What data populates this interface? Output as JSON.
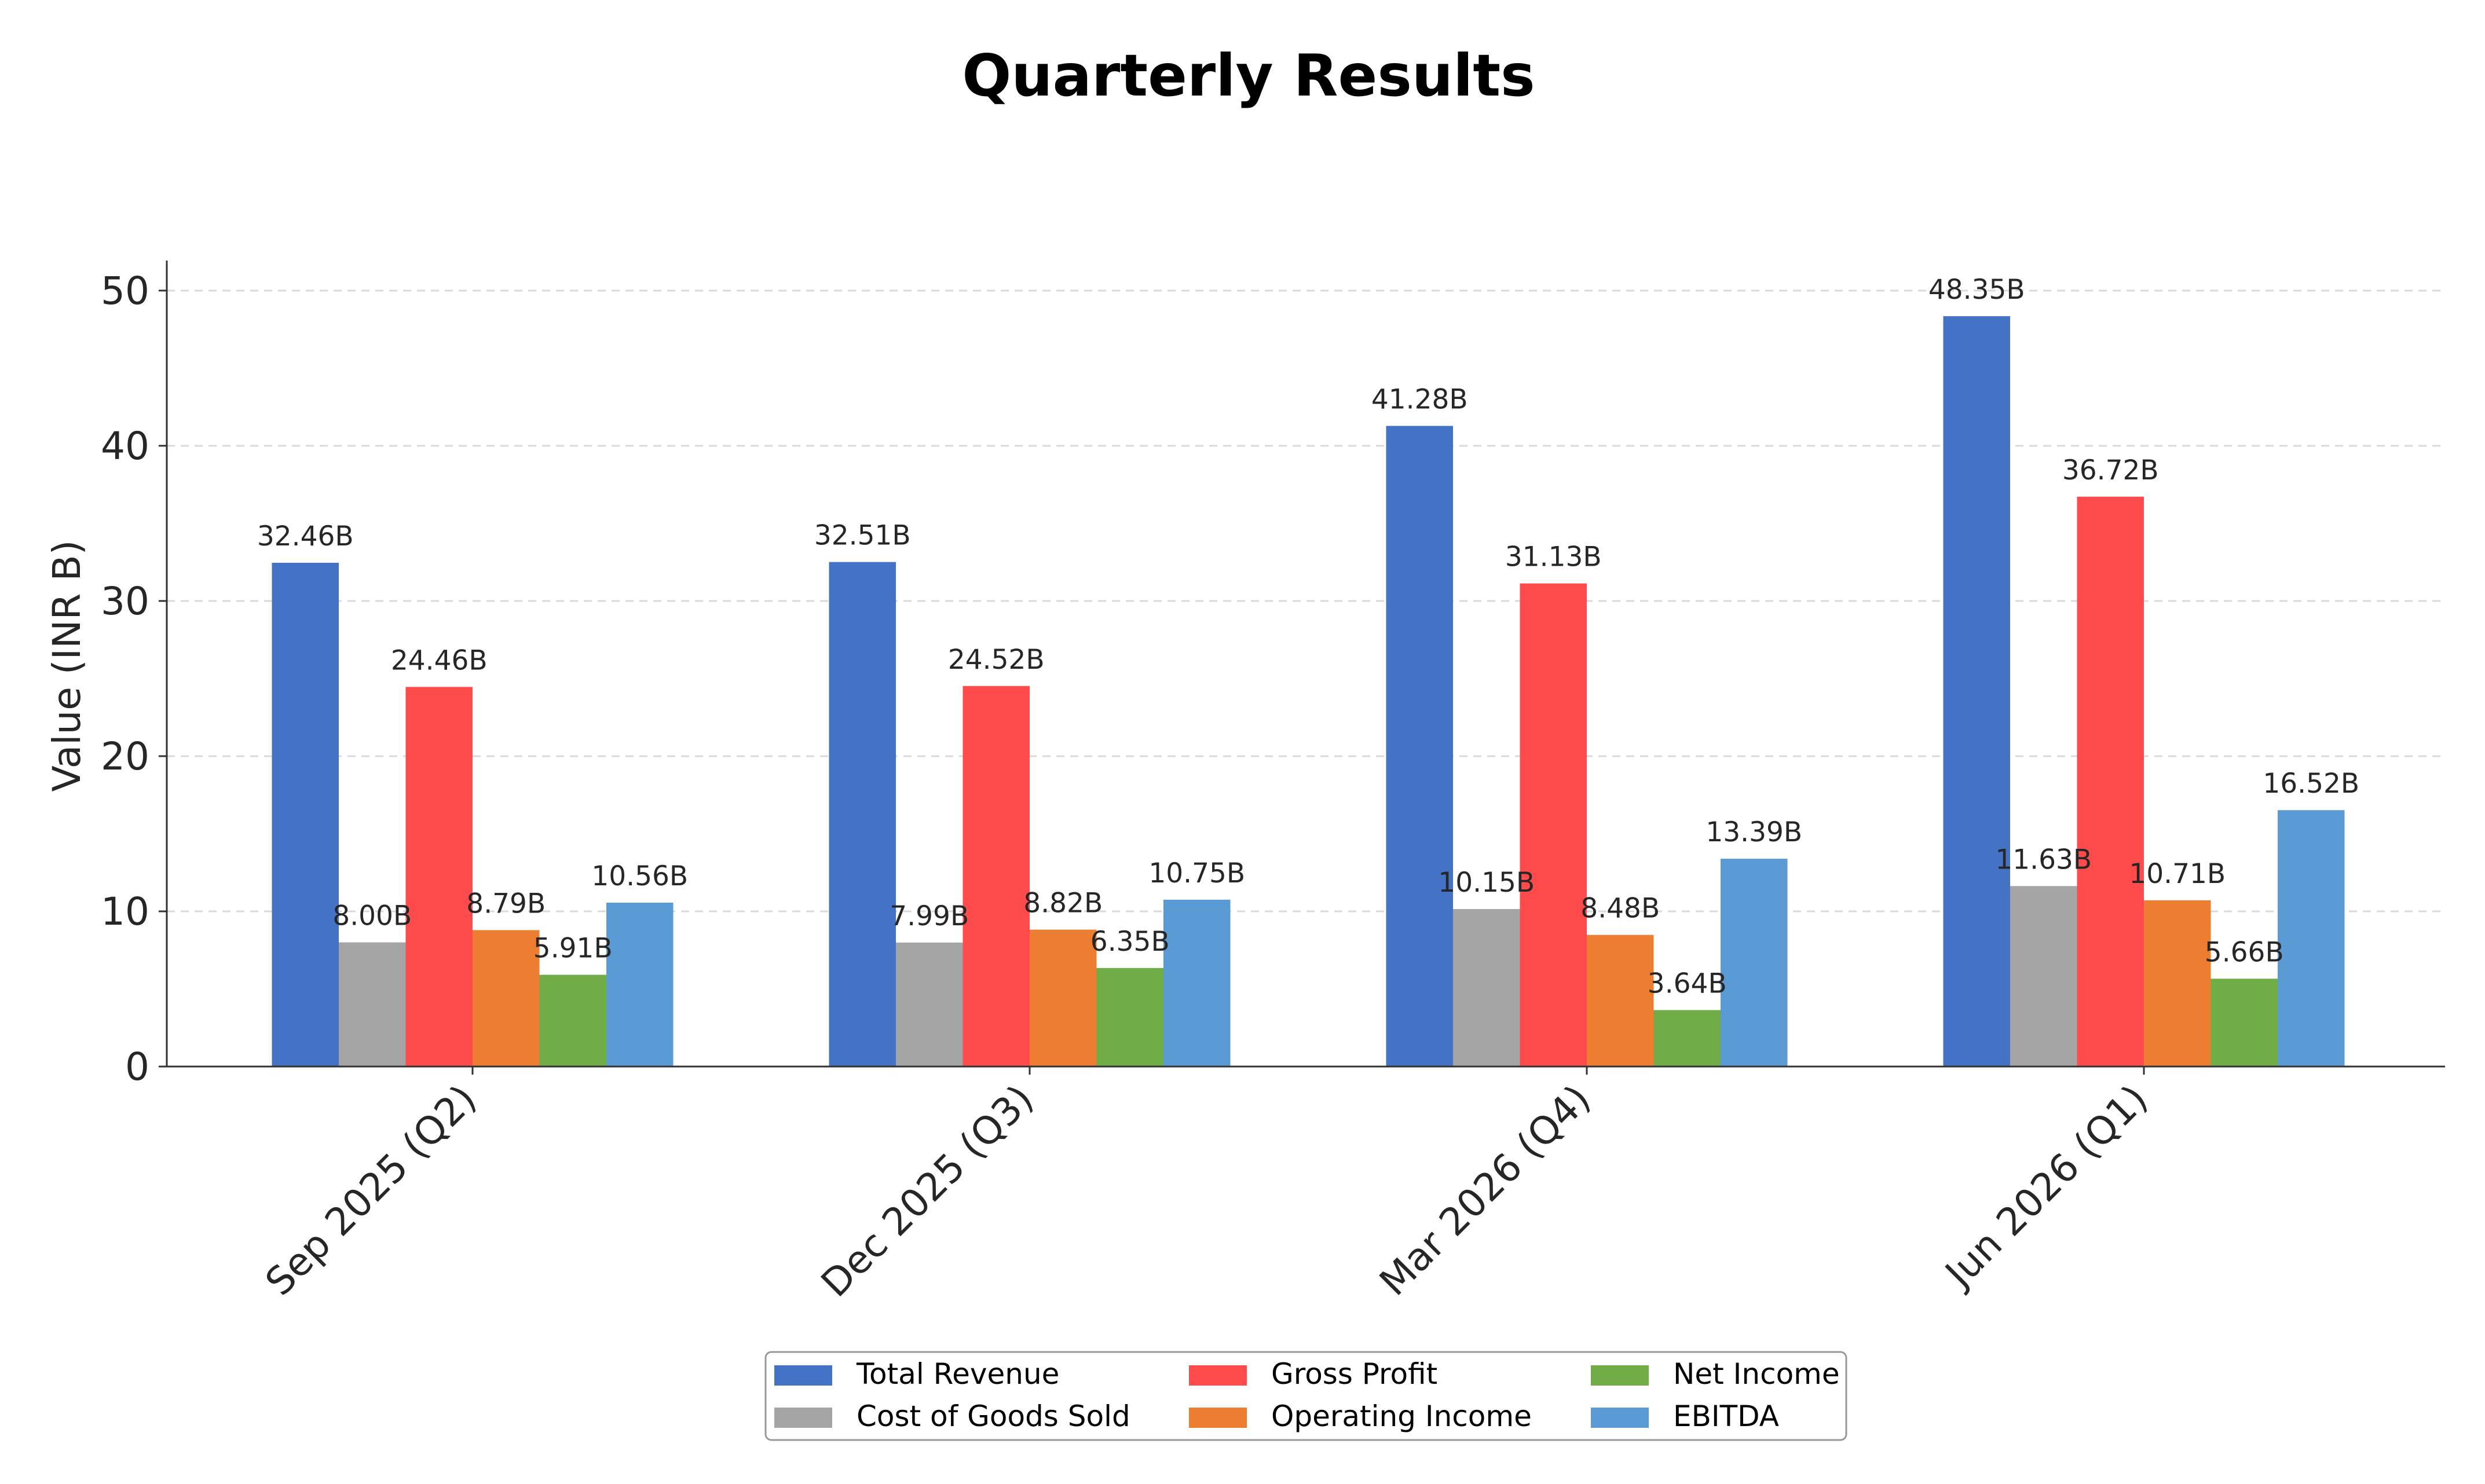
{
  "chart_data": {
    "type": "bar",
    "title": "Quarterly Results",
    "xlabel": "",
    "ylabel": "Value (INR B)",
    "ylim": [
      0,
      50
    ],
    "yticks": [
      0,
      10,
      20,
      30,
      40,
      50
    ],
    "grid": "horizontal dashed",
    "legend_position": "bottom-center",
    "legend_columns": 3,
    "categories": [
      "Sep 2025 (Q2)",
      "Dec 2025 (Q3)",
      "Mar 2026 (Q4)",
      "Jun 2026 (Q1)"
    ],
    "series": [
      {
        "name": "Total Revenue",
        "color": "#4472C4",
        "values": [
          32.46,
          32.51,
          41.28,
          48.35
        ],
        "labels": [
          "32.46B",
          "32.51B",
          "41.28B",
          "48.35B"
        ]
      },
      {
        "name": "Cost of Goods Sold",
        "color": "#A5A5A5",
        "values": [
          8.0,
          7.99,
          10.15,
          11.63
        ],
        "labels": [
          "8.00B",
          "7.99B",
          "10.15B",
          "11.63B"
        ]
      },
      {
        "name": "Gross Profit",
        "color": "#FF4B4B",
        "values": [
          24.46,
          24.52,
          31.13,
          36.72
        ],
        "labels": [
          "24.46B",
          "24.52B",
          "31.13B",
          "36.72B"
        ]
      },
      {
        "name": "Operating Income",
        "color": "#ED7D31",
        "values": [
          8.79,
          8.82,
          8.48,
          10.71
        ],
        "labels": [
          "8.79B",
          "8.82B",
          "8.48B",
          "10.71B"
        ]
      },
      {
        "name": "Net Income",
        "color": "#70AD47",
        "values": [
          5.91,
          6.35,
          3.64,
          5.66
        ],
        "labels": [
          "5.91B",
          "6.35B",
          "3.64B",
          "5.66B"
        ]
      },
      {
        "name": "EBITDA",
        "color": "#5B9BD5",
        "values": [
          10.56,
          10.75,
          13.39,
          16.52
        ],
        "labels": [
          "10.56B",
          "10.75B",
          "13.39B",
          "16.52B"
        ]
      }
    ]
  }
}
